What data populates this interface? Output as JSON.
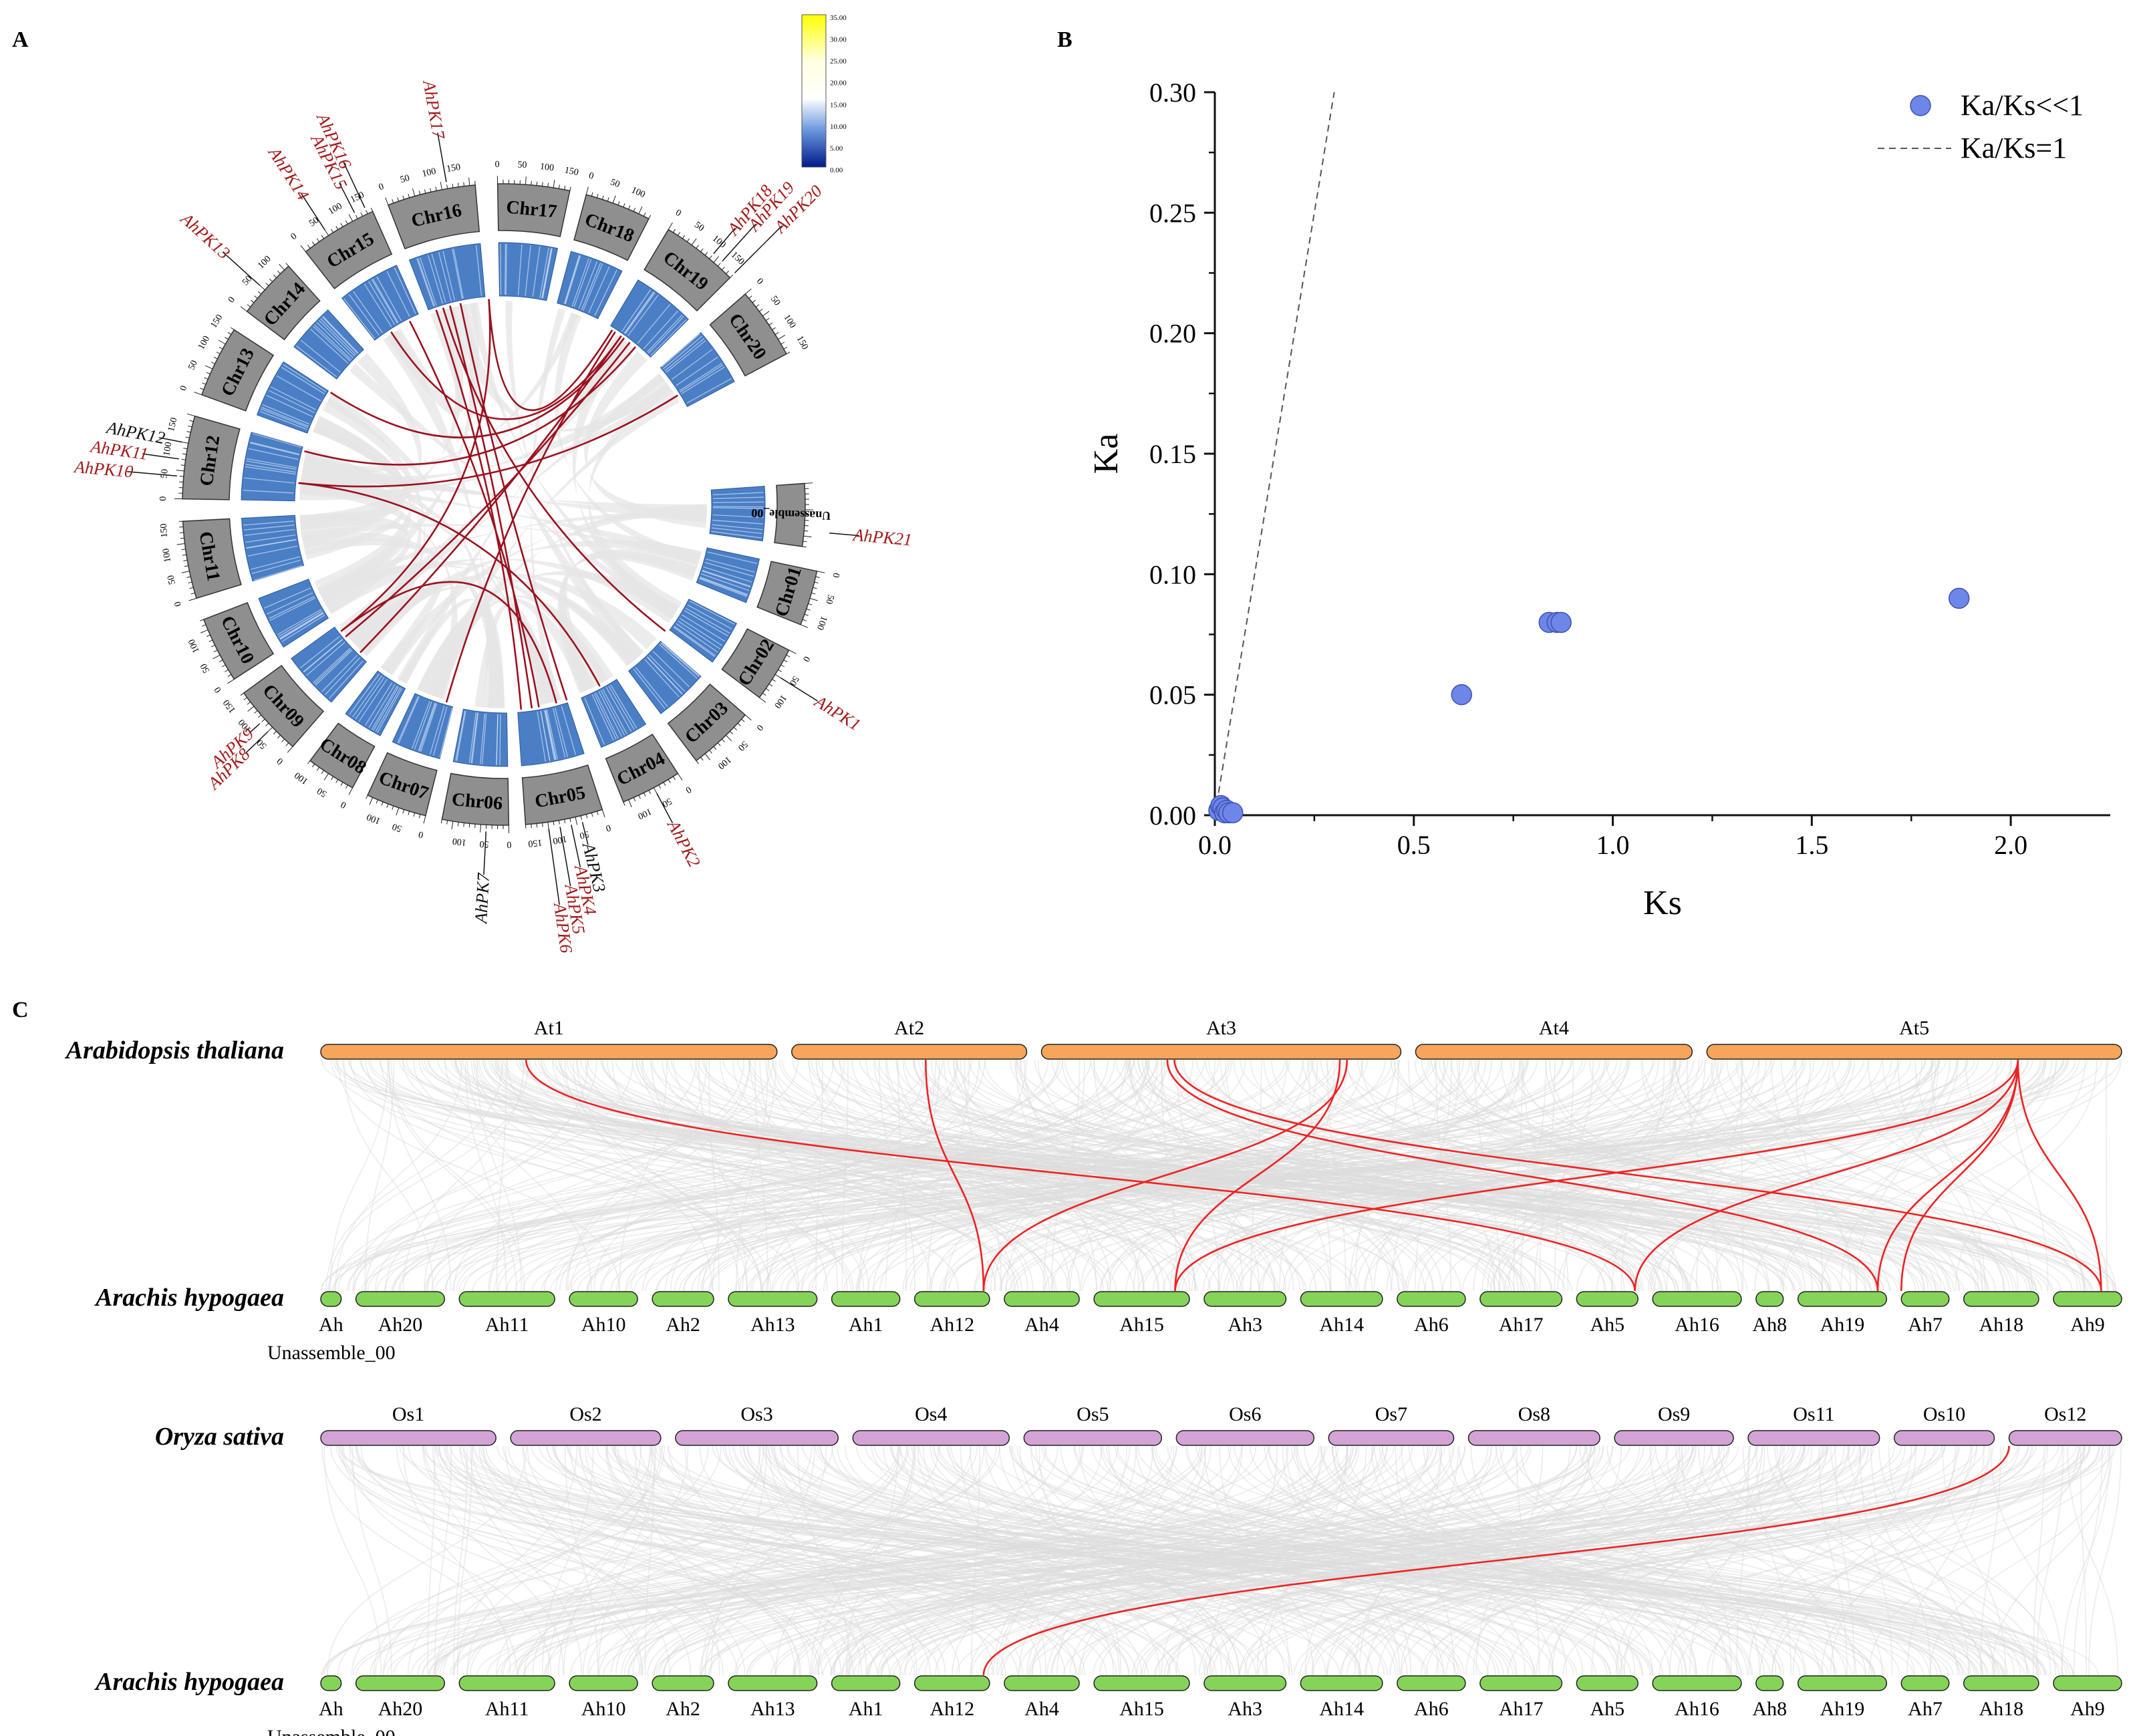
{
  "panels": {
    "a": "A",
    "b": "B",
    "c": "C"
  },
  "colors": {
    "chrom_fill": "#8f8f8f",
    "heat_blue": "#4a7fc6",
    "link_red": "#9b111e",
    "label_red": "#a31a1a",
    "gene_black": "#111111",
    "ribbon_gray": "#e6e6e6",
    "dot_fill": "#6d86e8",
    "at_fill": "#f6a55a",
    "ah_fill": "#86d35a",
    "os_fill": "#d3a3d6",
    "syn_red": "#ee2222"
  },
  "circos": {
    "chromosomes": [
      "Chr01",
      "Chr02",
      "Chr03",
      "Chr04",
      "Chr05",
      "Chr06",
      "Chr07",
      "Chr08",
      "Chr09",
      "Chr10",
      "Chr11",
      "Chr12",
      "Chr13",
      "Chr14",
      "Chr15",
      "Chr16",
      "Chr17",
      "Chr18",
      "Chr19",
      "Chr20",
      "Unassemble_00"
    ],
    "ticks": [
      "0",
      "50",
      "100",
      "150"
    ],
    "colorbar": {
      "max_label": "35.00",
      "labels": [
        "35.00",
        "30.00",
        "25.00",
        "20.00",
        "15.00",
        "10.00",
        "5.00",
        "0.00"
      ]
    },
    "genes": [
      {
        "name": "AhPK1",
        "color": "red"
      },
      {
        "name": "AhPK2",
        "color": "red"
      },
      {
        "name": "AhPK3",
        "color": "black"
      },
      {
        "name": "AhPK4",
        "color": "red"
      },
      {
        "name": "AhPK5",
        "color": "red"
      },
      {
        "name": "AhPK6",
        "color": "red"
      },
      {
        "name": "AhPK7",
        "color": "black"
      },
      {
        "name": "AhPK8",
        "color": "red"
      },
      {
        "name": "AhPK9",
        "color": "red"
      },
      {
        "name": "AhPK10",
        "color": "red"
      },
      {
        "name": "AhPK11",
        "color": "red"
      },
      {
        "name": "AhPK12",
        "color": "black"
      },
      {
        "name": "AhPK13",
        "color": "red"
      },
      {
        "name": "AhPK14",
        "color": "red"
      },
      {
        "name": "AhPK15",
        "color": "red"
      },
      {
        "name": "AhPK16",
        "color": "red"
      },
      {
        "name": "AhPK17",
        "color": "red"
      },
      {
        "name": "AhPK18",
        "color": "red"
      },
      {
        "name": "AhPK19",
        "color": "red"
      },
      {
        "name": "AhPK20",
        "color": "red"
      },
      {
        "name": "AhPK21",
        "color": "red"
      }
    ]
  },
  "chart_data": [
    {
      "type": "scatter",
      "title": "",
      "xlabel": "Ks",
      "ylabel": "Ka",
      "xlim": [
        0,
        2.25
      ],
      "ylim": [
        0,
        0.3
      ],
      "xticks": [
        "0.0",
        "0.5",
        "1.0",
        "1.5",
        "2.0"
      ],
      "yticks": [
        "0.00",
        "0.05",
        "0.10",
        "0.15",
        "0.20",
        "0.25",
        "0.30"
      ],
      "legend": {
        "position": "top-right",
        "dots": "Ka/Ks<<1",
        "line": "Ka/Ks=1"
      },
      "series": [
        {
          "name": "Ka/Ks<<1",
          "x": [
            0.62,
            0.84,
            0.86,
            0.87,
            1.87,
            0.01,
            0.015,
            0.02,
            0.025,
            0.03,
            0.035,
            0.045
          ],
          "y": [
            0.05,
            0.08,
            0.08,
            0.08,
            0.09,
            0.002,
            0.004,
            0.003,
            0.001,
            0.002,
            0.001,
            0.001
          ]
        },
        {
          "name": "Ka/Ks=1",
          "x": [
            0,
            0.3
          ],
          "y": [
            0,
            0.3
          ]
        }
      ]
    },
    {
      "type": "synteny",
      "rows": [
        {
          "species": "Arabidopsis thaliana",
          "chromosomes": [
            "At1",
            "At2",
            "At3",
            "At4",
            "At5"
          ]
        },
        {
          "species": "Arachis hypogaea",
          "chromosomes": [
            "Ah",
            "Ah20",
            "Ah11",
            "Ah10",
            "Ah2",
            "Ah13",
            "Ah1",
            "Ah12",
            "Ah4",
            "Ah15",
            "Ah3",
            "Ah14",
            "Ah6",
            "Ah17",
            "Ah5",
            "Ah16",
            "Ah8",
            "Ah19",
            "Ah7",
            "Ah18",
            "Ah9"
          ],
          "extra_label": "Unassemble_00"
        },
        {
          "species": "Oryza sativa",
          "chromosomes": [
            "Os1",
            "Os2",
            "Os3",
            "Os4",
            "Os5",
            "Os6",
            "Os7",
            "Os8",
            "Os9",
            "Os11",
            "Os10",
            "Os12"
          ]
        },
        {
          "species": "Arachis hypogaea",
          "chromosomes": [
            "Ah",
            "Ah20",
            "Ah11",
            "Ah10",
            "Ah2",
            "Ah13",
            "Ah1",
            "Ah12",
            "Ah4",
            "Ah15",
            "Ah3",
            "Ah14",
            "Ah6",
            "Ah17",
            "Ah5",
            "Ah16",
            "Ah8",
            "Ah19",
            "Ah7",
            "Ah18",
            "Ah9"
          ],
          "extra_label": "Unassemble_00"
        }
      ],
      "links": [
        {
          "from": "At1",
          "to": "Ah5"
        },
        {
          "from": "At2",
          "to": "Ah12"
        },
        {
          "from": "At3",
          "to": "Ah12"
        },
        {
          "from": "At3",
          "to": "Ah15"
        },
        {
          "from": "At3",
          "to": "Ah19"
        },
        {
          "from": "At3",
          "to": "Ah9"
        },
        {
          "from": "At5",
          "to": "Ah5"
        },
        {
          "from": "At5",
          "to": "Ah15"
        },
        {
          "from": "At5",
          "to": "Ah19"
        },
        {
          "from": "At5",
          "to": "Ah9"
        },
        {
          "from": "At5",
          "to": "Ah7"
        },
        {
          "from": "Os12",
          "to": "Ah12"
        }
      ]
    }
  ]
}
